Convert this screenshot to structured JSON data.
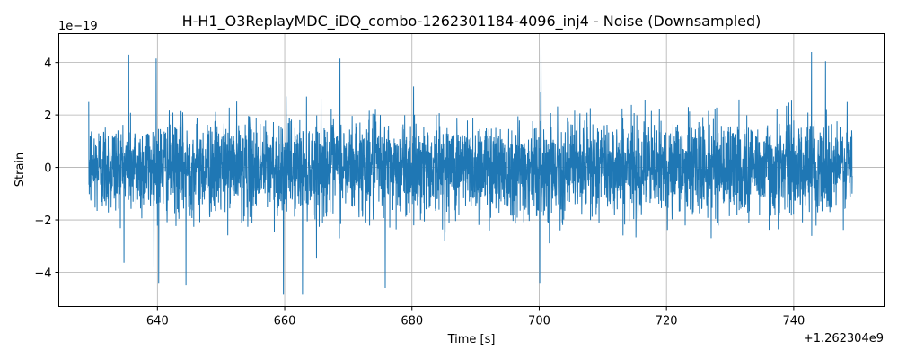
{
  "chart_data": {
    "type": "line",
    "title": "H-H1_O3ReplayMDC_iDQ_combo-1262301184-4096_inj4 - Noise (Downsampled)",
    "xlabel": "Time [s]",
    "ylabel": "Strain",
    "x_offset_label": "+1.262304e9",
    "y_scale_label": "1e−19",
    "xlim": [
      624.5,
      754.2
    ],
    "ylim": [
      -5.3,
      5.1
    ],
    "x_ticks": [
      640,
      660,
      680,
      700,
      720,
      740
    ],
    "x_tick_labels": [
      "640",
      "660",
      "680",
      "700",
      "720",
      "740"
    ],
    "y_ticks": [
      -4,
      -2,
      0,
      2,
      4
    ],
    "y_tick_labels": [
      "−4",
      "−2",
      "0",
      "2",
      "4"
    ],
    "grid": true,
    "line_color": "#1f77b4",
    "series": [
      {
        "x_start": 629.2,
        "x_end": 749.2,
        "amplitude_std": 0.9,
        "peaks": [
          {
            "x": 635.5,
            "y": 4.3
          },
          {
            "x": 639.8,
            "y": 4.15
          },
          {
            "x": 640.2,
            "y": -4.4
          },
          {
            "x": 644.5,
            "y": -4.5
          },
          {
            "x": 659.8,
            "y": -4.85
          },
          {
            "x": 662.8,
            "y": -4.85
          },
          {
            "x": 668.7,
            "y": 4.15
          },
          {
            "x": 675.8,
            "y": -4.6
          },
          {
            "x": 700.3,
            "y": 4.6
          },
          {
            "x": 700.1,
            "y": -4.4
          },
          {
            "x": 742.8,
            "y": 4.4
          },
          {
            "x": 745.0,
            "y": 4.05
          }
        ]
      }
    ]
  }
}
